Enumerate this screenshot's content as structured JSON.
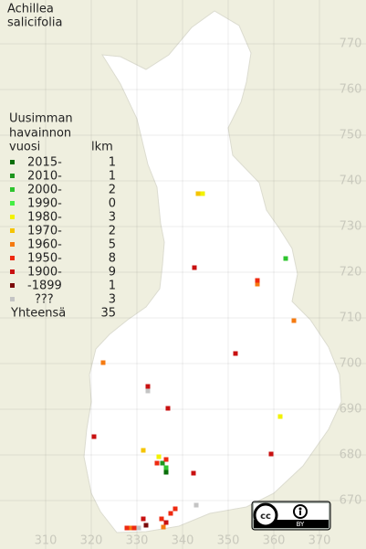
{
  "title": [
    "Achillea",
    "salicifolia"
  ],
  "legend": {
    "header": [
      "Uusimman",
      "havainnon",
      "vuosi"
    ],
    "count_header": "lkm",
    "entries": [
      {
        "label": "2015-",
        "count": 1,
        "color": "#0a6e0a",
        "points": [
          [
            336.4,
            676.2
          ]
        ]
      },
      {
        "label": "2010-",
        "count": 1,
        "color": "#1e961e",
        "points": [
          [
            335.6,
            678.2
          ]
        ]
      },
      {
        "label": "2000-",
        "count": 2,
        "color": "#2ec42e",
        "points": [
          [
            362.6,
            723
          ],
          [
            336.4,
            677.2
          ]
        ]
      },
      {
        "label": "1990-",
        "count": 0,
        "color": "#44ee44",
        "points": []
      },
      {
        "label": "1980-",
        "count": 3,
        "color": "#f2f200",
        "points": [
          [
            361.4,
            688.4
          ],
          [
            334.8,
            679.6
          ],
          [
            344.4,
            737.2
          ]
        ]
      },
      {
        "label": "1970-",
        "count": 2,
        "color": "#f5c400",
        "points": [
          [
            331.4,
            681
          ],
          [
            343.4,
            737.2
          ]
        ]
      },
      {
        "label": "1960-",
        "count": 5,
        "color": "#f57a10",
        "points": [
          [
            322.6,
            700.2
          ],
          [
            356.4,
            717.4
          ],
          [
            364.4,
            709.4
          ],
          [
            328.4,
            664
          ],
          [
            335.8,
            664.2
          ]
        ]
      },
      {
        "label": "1950-",
        "count": 8,
        "color": "#ee2a10",
        "points": [
          [
            356.4,
            718.2
          ],
          [
            335.4,
            666
          ],
          [
            338.4,
            668.2
          ],
          [
            327.8,
            664
          ],
          [
            334.4,
            678.2
          ],
          [
            336.4,
            679
          ],
          [
            329.4,
            664
          ],
          [
            337.4,
            667.2
          ]
        ]
      },
      {
        "label": "1900-",
        "count": 9,
        "color": "#c81010",
        "points": [
          [
            342.6,
            721
          ],
          [
            351.6,
            702.2
          ],
          [
            332.4,
            695
          ],
          [
            336.8,
            690.2
          ],
          [
            320.6,
            684
          ],
          [
            359.4,
            680.2
          ],
          [
            342.4,
            676
          ],
          [
            331.4,
            666
          ],
          [
            336.4,
            665.2
          ]
        ]
      },
      {
        "label": "-1899",
        "count": 1,
        "color": "#7a0a0a",
        "points": [
          [
            332,
            664.6
          ]
        ]
      },
      {
        "label": "???",
        "count": 3,
        "color": "#c4c4c4",
        "points": [
          [
            332.4,
            694
          ],
          [
            343,
            669
          ],
          [
            330.4,
            664
          ]
        ]
      }
    ],
    "total_label": "Yhteensä",
    "total": 35
  },
  "grid": {
    "x_labels": [
      310,
      320,
      330,
      340,
      350,
      360,
      370
    ],
    "y_labels": [
      770,
      760,
      750,
      740,
      730,
      720,
      710,
      700,
      690,
      680,
      670
    ]
  },
  "license_badge": "BY"
}
